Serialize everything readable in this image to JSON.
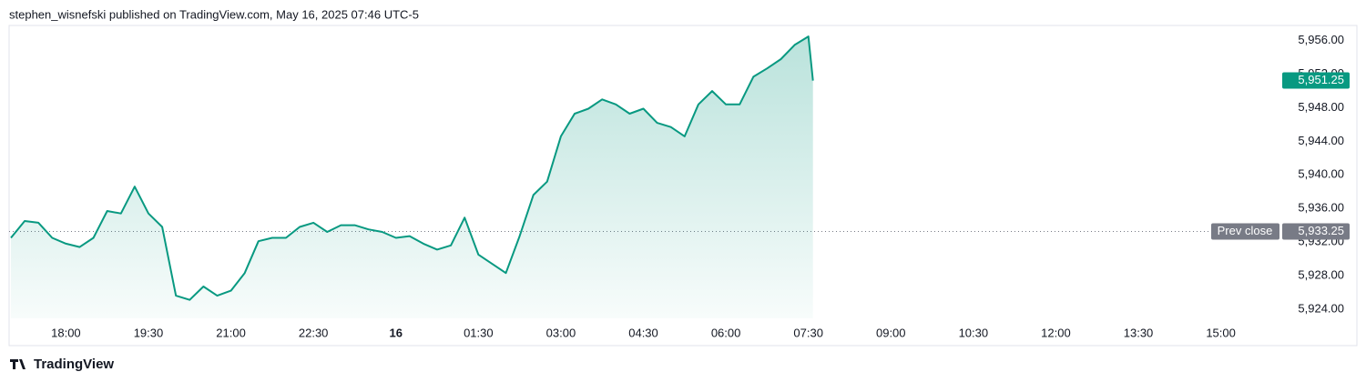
{
  "header": "stephen_wisnefski published on TradingView.com, May 16, 2025 07:46 UTC-5",
  "footer": "TradingView",
  "chart_data": {
    "type": "area",
    "x": [
      "17:00",
      "17:15",
      "17:30",
      "17:45",
      "18:00",
      "18:15",
      "18:30",
      "18:45",
      "19:00",
      "19:15",
      "19:30",
      "19:45",
      "20:00",
      "20:15",
      "20:30",
      "20:45",
      "21:00",
      "21:15",
      "21:30",
      "21:45",
      "22:00",
      "22:15",
      "22:30",
      "22:45",
      "23:00",
      "23:15",
      "23:30",
      "23:45",
      "00:00",
      "00:15",
      "00:30",
      "00:45",
      "01:00",
      "01:15",
      "01:30",
      "01:45",
      "02:00",
      "02:15",
      "02:30",
      "02:45",
      "03:00",
      "03:15",
      "03:30",
      "03:45",
      "04:00",
      "04:15",
      "04:30",
      "04:45",
      "05:00",
      "05:15",
      "05:30",
      "05:45",
      "06:00",
      "06:15",
      "06:30",
      "06:45",
      "07:00",
      "07:15",
      "07:30",
      "07:35"
    ],
    "series": [
      {
        "color": "#089981",
        "values": [
          5932.5,
          5934.5,
          5934.3,
          5932.5,
          5931.8,
          5931.4,
          5932.5,
          5935.7,
          5935.4,
          5938.6,
          5935.4,
          5933.8,
          5925.6,
          5925.1,
          5926.7,
          5925.6,
          5926.2,
          5928.3,
          5932.1,
          5932.5,
          5932.5,
          5933.8,
          5934.3,
          5933.2,
          5934.0,
          5934.0,
          5933.5,
          5933.2,
          5932.5,
          5932.7,
          5931.8,
          5931.1,
          5931.6,
          5934.9,
          5930.5,
          5929.4,
          5928.3,
          5932.7,
          5937.6,
          5939.2,
          5944.6,
          5947.3,
          5947.9,
          5949.0,
          5948.4,
          5947.3,
          5947.9,
          5946.2,
          5945.7,
          5944.6,
          5948.4,
          5950.0,
          5948.4,
          5948.4,
          5951.7,
          5952.7,
          5953.8,
          5955.5,
          5956.5,
          5951.25
        ]
      }
    ],
    "last_price": {
      "value": 5951.25,
      "label": "5,951.25"
    },
    "prev_close": {
      "value": 5933.25,
      "label": "5,933.25",
      "text": "Prev close",
      "color": "#787b86"
    },
    "xlim": [
      "16:58",
      "15:59"
    ],
    "xticks": [
      "18:00",
      "19:30",
      "21:00",
      "22:30",
      {
        "value": "00:00",
        "label": "16"
      },
      "01:30",
      "03:00",
      "04:30",
      "06:00",
      "07:30",
      "09:00",
      "10:30",
      "12:00",
      "13:30",
      "15:00"
    ],
    "ylim": [
      5922.9,
      5957.6
    ],
    "yticks": [
      {
        "value": 5924,
        "label": "5,924.00"
      },
      {
        "value": 5928,
        "label": "5,928.00"
      },
      {
        "value": 5932,
        "label": "5,932.00"
      },
      {
        "value": 5936,
        "label": "5,936.00"
      },
      {
        "value": 5940,
        "label": "5,940.00"
      },
      {
        "value": 5944,
        "label": "5,944.00"
      },
      {
        "value": 5948,
        "label": "5,948.00"
      },
      {
        "value": 5952,
        "label": "5,952.00"
      },
      {
        "value": 5956,
        "label": "5,956.00"
      }
    ],
    "grid": false
  }
}
